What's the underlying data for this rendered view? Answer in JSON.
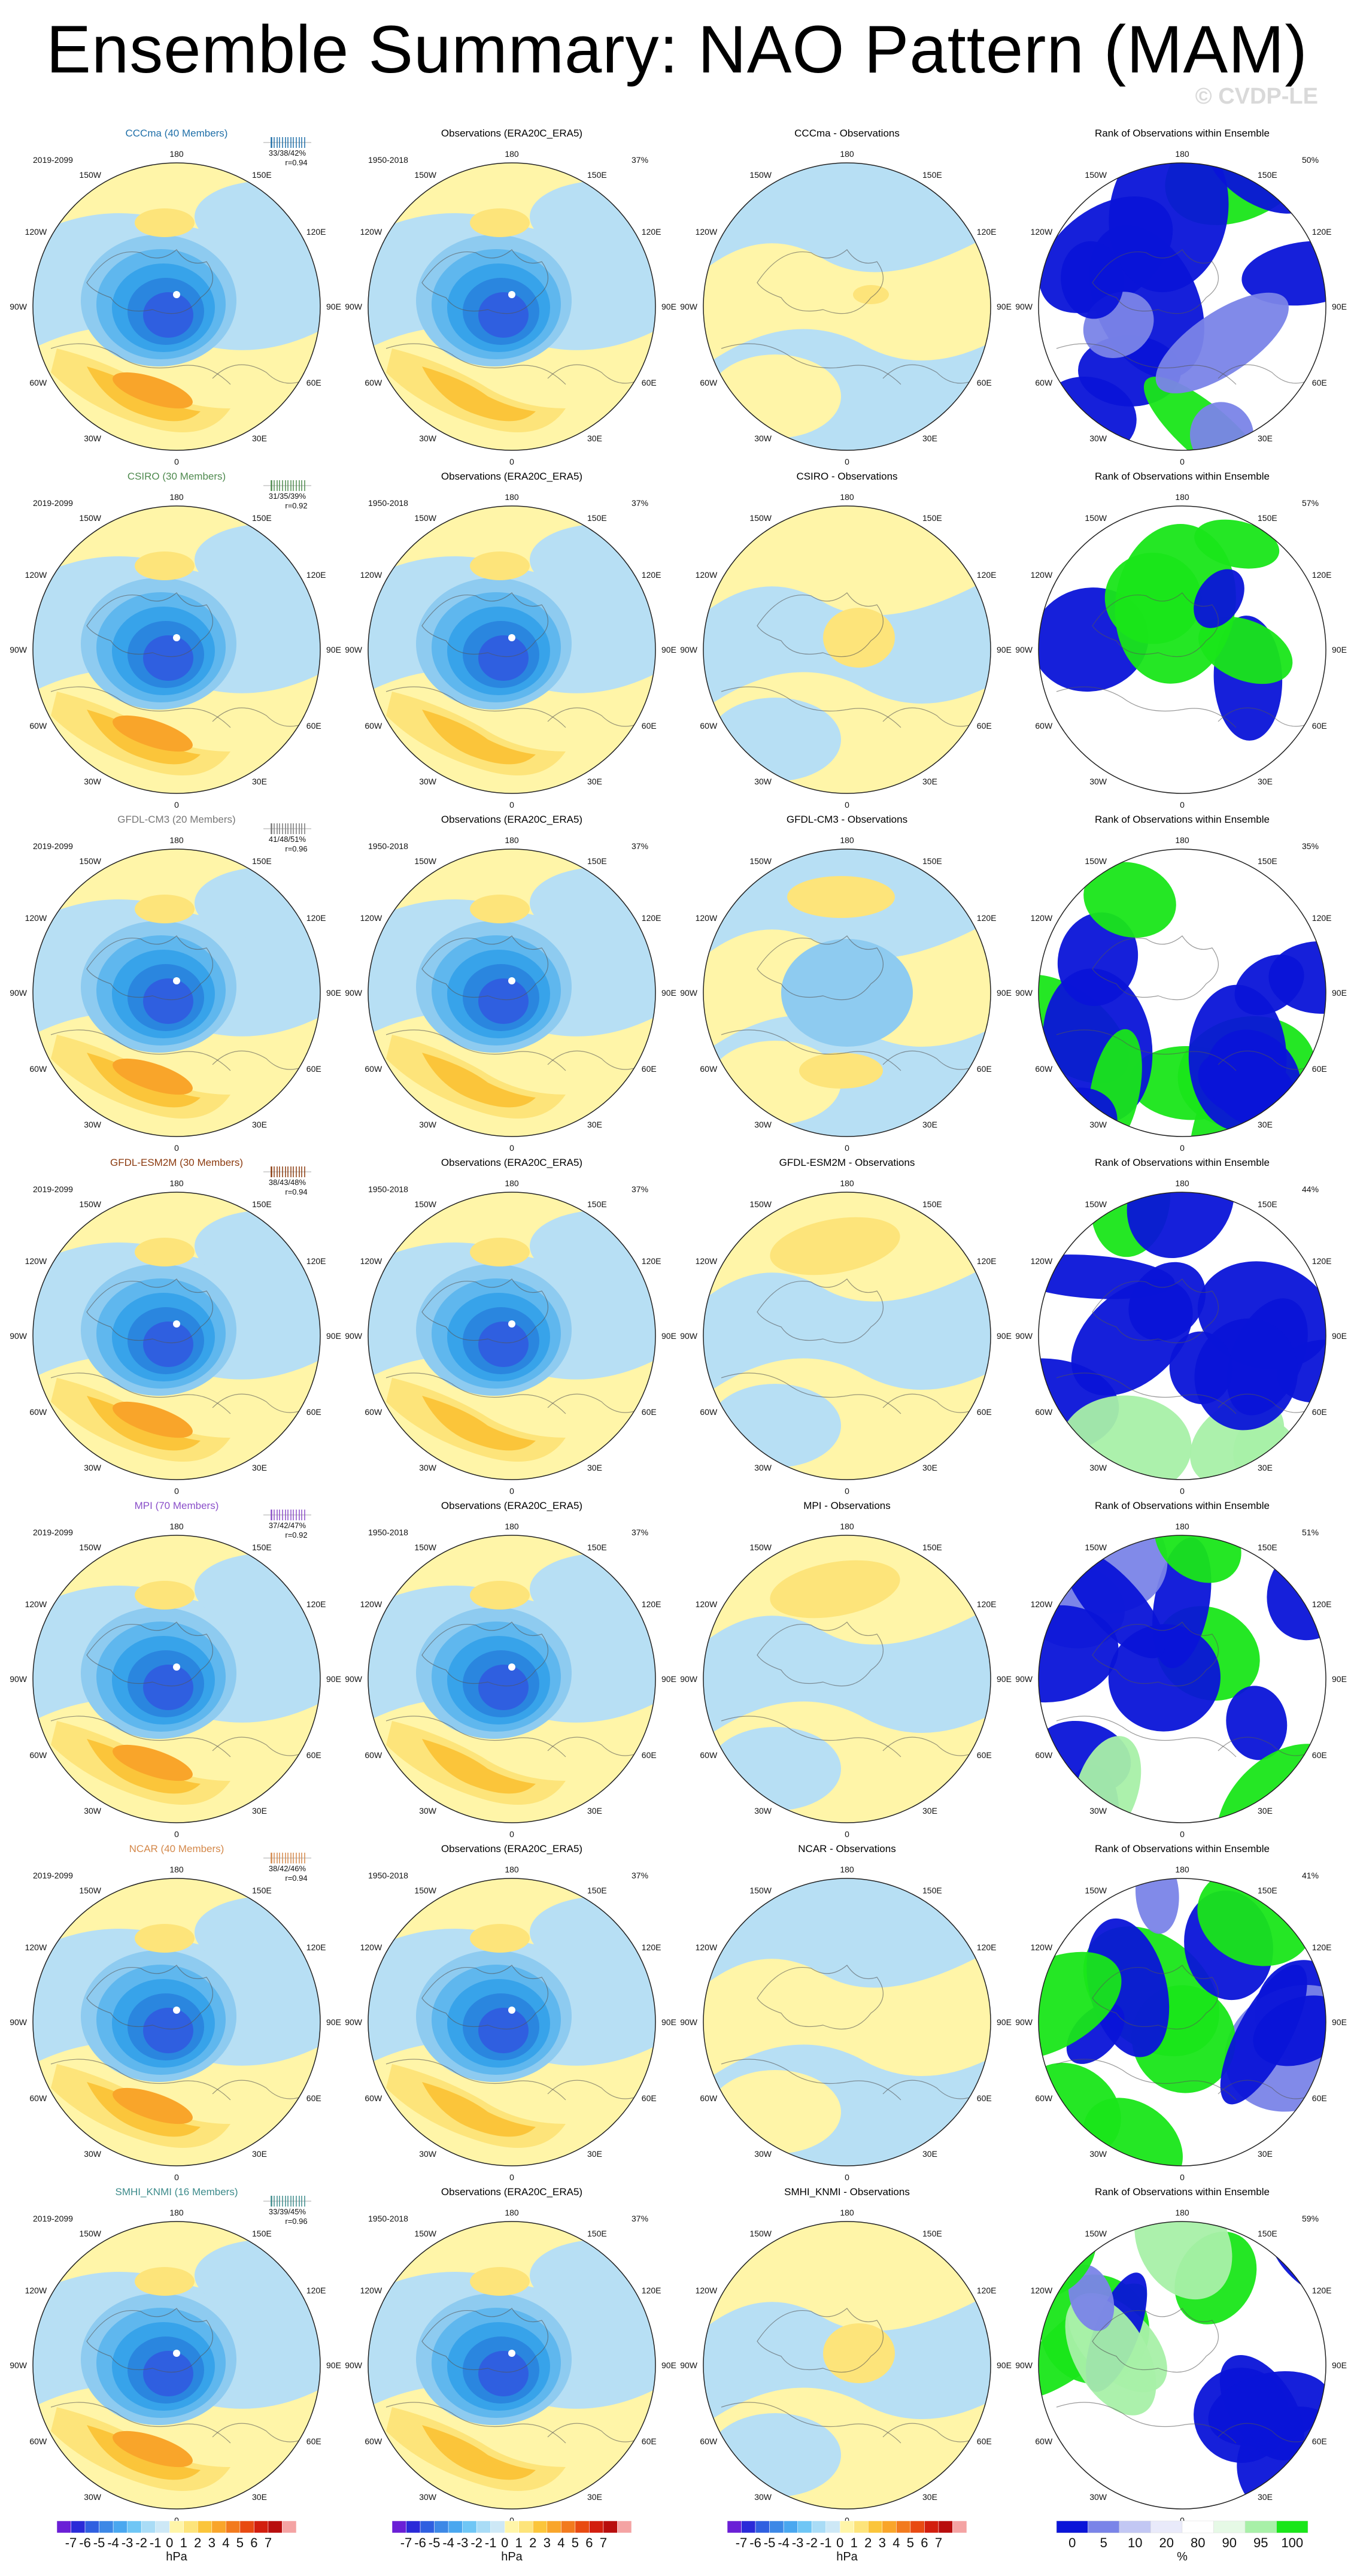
{
  "title": "Ensemble Summary: NAO Pattern (MAM)",
  "watermark": "© CVDP-LE",
  "obs_title": "Observations (ERA20C_ERA5)",
  "rank_title": "Rank of Observations within Ensemble",
  "model_period": "2019-2099",
  "obs_period": "1950-2018",
  "obs_pct": "37%",
  "lon_labels": {
    "top": "180",
    "bottom": "0",
    "left": "90W",
    "right": "90E",
    "tl1": "150W",
    "tr1": "150E",
    "tl2": "120W",
    "tr2": "120E",
    "bl1": "60W",
    "br1": "60E",
    "bl2": "30W",
    "br2": "30E"
  },
  "rows": [
    {
      "model": "CCCma (40 Members)",
      "color": "#1f6fa8",
      "stats": "33/38/42%",
      "r": "r=0.94",
      "diff_title": "CCCma - Observations",
      "rank_pct": "50%",
      "diag": "obs-like",
      "rank": "mixed"
    },
    {
      "model": "CSIRO (30 Members)",
      "color": "#4f8a4f",
      "stats": "31/35/39%",
      "r": "r=0.92",
      "diff_title": "CSIRO - Observations",
      "rank_pct": "57%",
      "diag": "light-pos",
      "rank": "white-heavy"
    },
    {
      "model": "GFDL-CM3 (20 Members)",
      "color": "#777777",
      "stats": "41/48/51%",
      "r": "r=0.96",
      "diff_title": "GFDL-CM3 - Observations",
      "rank_pct": "35%",
      "diag": "neg-center",
      "rank": "blue-heavy"
    },
    {
      "model": "GFDL-ESM2M (30 Members)",
      "color": "#8b3a0f",
      "stats": "38/43/48%",
      "r": "r=0.94",
      "diff_title": "GFDL-ESM2M - Observations",
      "rank_pct": "44%",
      "diag": "pos-pacific",
      "rank": "mixed"
    },
    {
      "model": "MPI (70 Members)",
      "color": "#8a4fc9",
      "stats": "37/42/47%",
      "r": "r=0.92",
      "diff_title": "MPI - Observations",
      "rank_pct": "51%",
      "diag": "pos-pacific",
      "rank": "mixed"
    },
    {
      "model": "NCAR (40 Members)",
      "color": "#d4884a",
      "stats": "38/42/46%",
      "r": "r=0.94",
      "diff_title": "NCAR - Observations",
      "rank_pct": "41%",
      "diag": "light-neg",
      "rank": "mixed"
    },
    {
      "model": "SMHI_KNMI (16 Members)",
      "color": "#3d8b8b",
      "stats": "33/39/45%",
      "r": "r=0.96",
      "diff_title": "SMHI_KNMI - Observations",
      "rank_pct": "59%",
      "diag": "light-pos",
      "rank": "mixed"
    }
  ],
  "colorbars": {
    "hpa_labels": [
      "-7",
      "-6",
      "-5",
      "-4",
      "-3",
      "-2",
      "-1",
      "0",
      "1",
      "2",
      "3",
      "4",
      "5",
      "6",
      "7"
    ],
    "hpa_unit": "hPa",
    "hpa_colors": [
      "#6a1fd6",
      "#2a2ad8",
      "#2f5fe0",
      "#3d88e6",
      "#4aa7ef",
      "#6fc6f5",
      "#a9dcf6",
      "#cde8f6",
      "#fff5a8",
      "#fde47a",
      "#fbc53a",
      "#f9a52a",
      "#f27a1e",
      "#e84a12",
      "#d21e0e",
      "#b80d0d",
      "#f4a3a3"
    ],
    "rank_labels": [
      "0",
      "5",
      "10",
      "20",
      "80",
      "90",
      "95",
      "100"
    ],
    "rank_unit": "%",
    "rank_colors": [
      "#0a14d8",
      "#7a84e8",
      "#c2c7f3",
      "#e9eafa",
      "#ffffff",
      "#e6f9e6",
      "#a8f0a8",
      "#19e619"
    ]
  }
}
